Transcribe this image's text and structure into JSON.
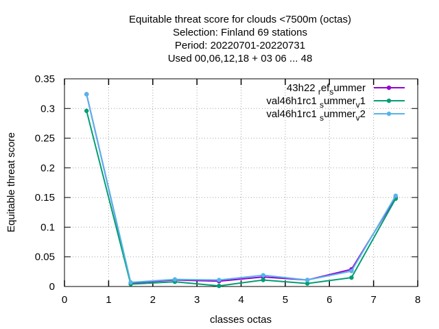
{
  "chart_data": {
    "type": "line",
    "title_lines": [
      "Equitable threat score  for clouds <7500m (octas)",
      "Selection: Finland     69 stations",
      "Period: 20220701-20220731",
      "Used  00,06,12,18  + 03 06 ... 48"
    ],
    "xlabel": "classes octas",
    "ylabel": "Equitable threat score",
    "xlim": [
      0,
      8
    ],
    "ylim": [
      0,
      0.35
    ],
    "xticks": [
      "0",
      "1",
      "2",
      "3",
      "4",
      "5",
      "6",
      "7",
      "8"
    ],
    "yticks": [
      "0",
      "0.05",
      "0.1",
      "0.15",
      "0.2",
      "0.25",
      "0.3",
      "0.35"
    ],
    "grid": true,
    "legend_position": "top-right",
    "x": [
      0.5,
      1.5,
      2.5,
      3.5,
      4.5,
      5.5,
      6.5,
      7.5
    ],
    "series": [
      {
        "name": "43h22 ref summer",
        "legend": {
          "base": "43h22 ",
          "sub1": "r",
          "mid1": "ef",
          "sub2": "s",
          "mid2": "ummer",
          "sub3": "",
          "end": ""
        },
        "color": "#9400d3",
        "values": [
          0.324,
          0.006,
          0.011,
          0.009,
          0.016,
          0.011,
          0.029,
          0.15
        ]
      },
      {
        "name": "val46h1rc1 summer v1",
        "legend": {
          "base": "val46h1rc1 ",
          "sub1": "s",
          "mid1": "ummer",
          "sub2": "v",
          "mid2": "1",
          "sub3": "",
          "end": ""
        },
        "color": "#009e73",
        "values": [
          0.296,
          0.004,
          0.008,
          0.001,
          0.011,
          0.005,
          0.015,
          0.148
        ]
      },
      {
        "name": "val46h1rc1 summer v2",
        "legend": {
          "base": "val46h1rc1 ",
          "sub1": "s",
          "mid1": "ummer",
          "sub2": "v",
          "mid2": "2",
          "sub3": "",
          "end": ""
        },
        "color": "#56b4e9",
        "values": [
          0.324,
          0.007,
          0.012,
          0.011,
          0.019,
          0.011,
          0.026,
          0.153
        ]
      }
    ]
  }
}
